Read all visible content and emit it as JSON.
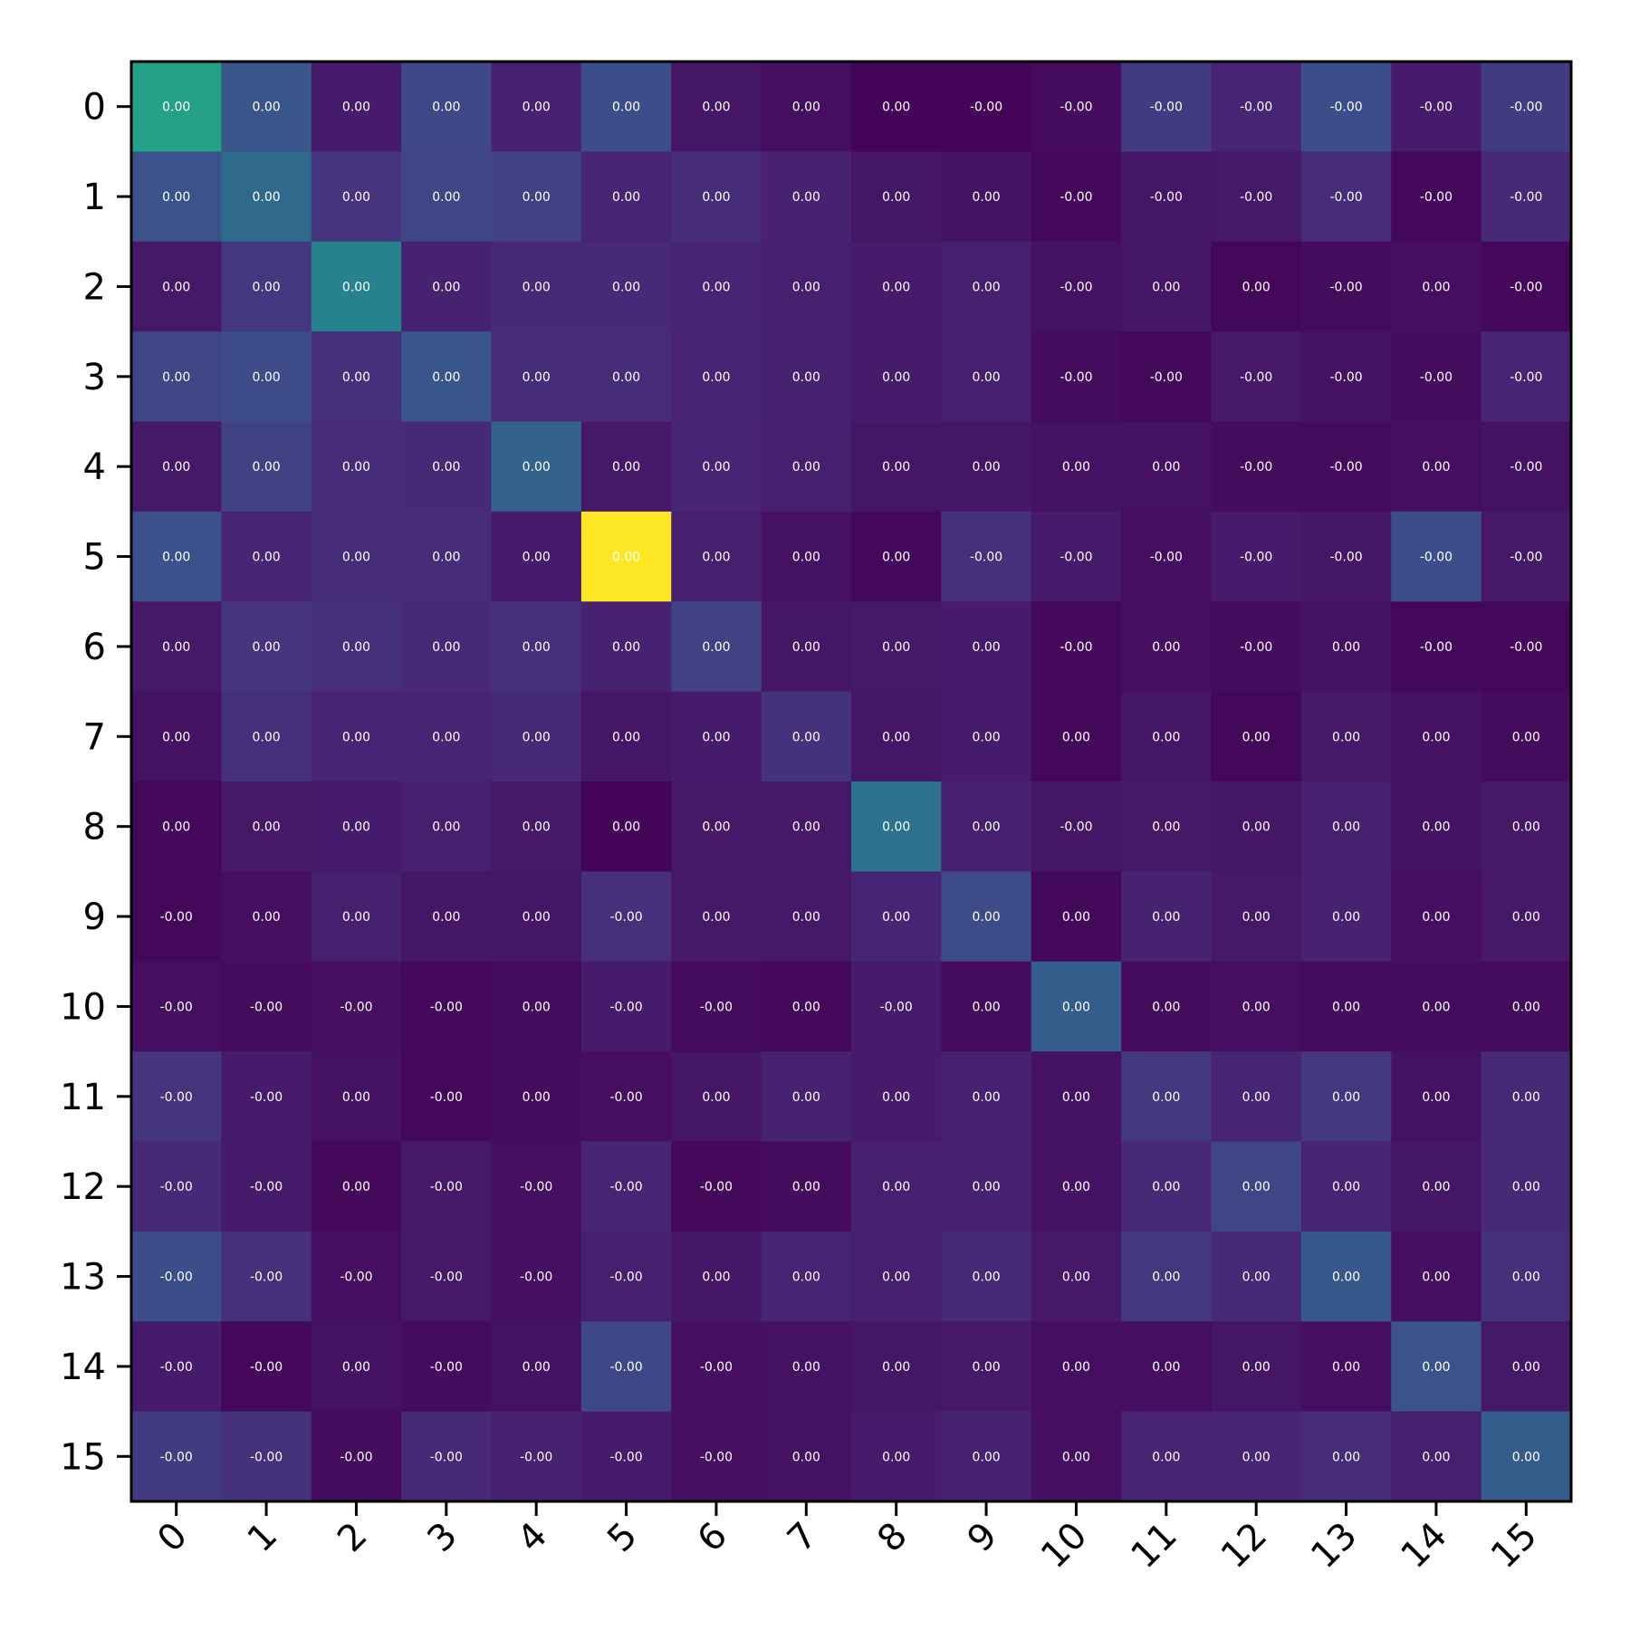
{
  "chart_data": {
    "type": "heatmap",
    "title": "",
    "xlabel": "",
    "ylabel": "",
    "x_categories": [
      "0",
      "1",
      "2",
      "3",
      "4",
      "5",
      "6",
      "7",
      "8",
      "9",
      "10",
      "11",
      "12",
      "13",
      "14",
      "15"
    ],
    "y_categories": [
      "0",
      "1",
      "2",
      "3",
      "4",
      "5",
      "6",
      "7",
      "8",
      "9",
      "10",
      "11",
      "12",
      "13",
      "14",
      "15"
    ],
    "colormap": "viridis",
    "grid": false,
    "legend": "none",
    "value_range": [
      0,
      1
    ],
    "intensity": [
      [
        0.57,
        0.27,
        0.08,
        0.22,
        0.1,
        0.24,
        0.06,
        0.04,
        0.01,
        0.01,
        0.03,
        0.18,
        0.11,
        0.24,
        0.08,
        0.18
      ],
      [
        0.26,
        0.35,
        0.16,
        0.21,
        0.2,
        0.11,
        0.13,
        0.1,
        0.06,
        0.05,
        0.02,
        0.06,
        0.07,
        0.13,
        0.02,
        0.12
      ],
      [
        0.07,
        0.17,
        0.45,
        0.1,
        0.12,
        0.12,
        0.11,
        0.09,
        0.08,
        0.09,
        0.05,
        0.06,
        0.02,
        0.03,
        0.04,
        0.02
      ],
      [
        0.21,
        0.23,
        0.14,
        0.27,
        0.13,
        0.13,
        0.11,
        0.1,
        0.08,
        0.09,
        0.03,
        0.02,
        0.07,
        0.05,
        0.03,
        0.11
      ],
      [
        0.07,
        0.2,
        0.13,
        0.12,
        0.32,
        0.07,
        0.11,
        0.09,
        0.06,
        0.06,
        0.05,
        0.05,
        0.03,
        0.03,
        0.04,
        0.05
      ],
      [
        0.25,
        0.11,
        0.13,
        0.13,
        0.08,
        1.0,
        0.09,
        0.05,
        0.02,
        0.14,
        0.08,
        0.04,
        0.08,
        0.06,
        0.24,
        0.07
      ],
      [
        0.07,
        0.16,
        0.14,
        0.12,
        0.14,
        0.1,
        0.2,
        0.06,
        0.07,
        0.08,
        0.02,
        0.04,
        0.03,
        0.05,
        0.02,
        0.02
      ],
      [
        0.05,
        0.14,
        0.11,
        0.11,
        0.12,
        0.06,
        0.08,
        0.15,
        0.06,
        0.08,
        0.02,
        0.06,
        0.02,
        0.07,
        0.05,
        0.03
      ],
      [
        0.02,
        0.07,
        0.08,
        0.09,
        0.07,
        0.01,
        0.07,
        0.07,
        0.38,
        0.09,
        0.06,
        0.07,
        0.06,
        0.09,
        0.05,
        0.07
      ],
      [
        0.02,
        0.04,
        0.09,
        0.06,
        0.06,
        0.14,
        0.07,
        0.07,
        0.11,
        0.23,
        0.02,
        0.1,
        0.07,
        0.1,
        0.04,
        0.07
      ],
      [
        0.04,
        0.03,
        0.04,
        0.02,
        0.03,
        0.08,
        0.03,
        0.02,
        0.08,
        0.03,
        0.3,
        0.03,
        0.04,
        0.03,
        0.03,
        0.03
      ],
      [
        0.16,
        0.08,
        0.05,
        0.02,
        0.03,
        0.04,
        0.06,
        0.1,
        0.08,
        0.1,
        0.05,
        0.17,
        0.11,
        0.17,
        0.05,
        0.12
      ],
      [
        0.12,
        0.08,
        0.02,
        0.07,
        0.04,
        0.11,
        0.02,
        0.03,
        0.09,
        0.1,
        0.05,
        0.12,
        0.21,
        0.11,
        0.06,
        0.12
      ],
      [
        0.24,
        0.14,
        0.04,
        0.07,
        0.04,
        0.09,
        0.06,
        0.11,
        0.09,
        0.12,
        0.07,
        0.17,
        0.12,
        0.28,
        0.04,
        0.14
      ],
      [
        0.08,
        0.02,
        0.05,
        0.03,
        0.05,
        0.22,
        0.04,
        0.05,
        0.06,
        0.07,
        0.04,
        0.04,
        0.06,
        0.04,
        0.26,
        0.07
      ],
      [
        0.18,
        0.15,
        0.03,
        0.12,
        0.1,
        0.08,
        0.04,
        0.05,
        0.08,
        0.1,
        0.04,
        0.11,
        0.11,
        0.13,
        0.09,
        0.3
      ]
    ],
    "labels": [
      [
        "0.00",
        "0.00",
        "0.00",
        "0.00",
        "0.00",
        "0.00",
        "0.00",
        "0.00",
        "0.00",
        "-0.00",
        "-0.00",
        "-0.00",
        "-0.00",
        "-0.00",
        "-0.00",
        "-0.00"
      ],
      [
        "0.00",
        "0.00",
        "0.00",
        "0.00",
        "0.00",
        "0.00",
        "0.00",
        "0.00",
        "0.00",
        "0.00",
        "-0.00",
        "-0.00",
        "-0.00",
        "-0.00",
        "-0.00",
        "-0.00"
      ],
      [
        "0.00",
        "0.00",
        "0.00",
        "0.00",
        "0.00",
        "0.00",
        "0.00",
        "0.00",
        "0.00",
        "0.00",
        "-0.00",
        "0.00",
        "0.00",
        "-0.00",
        "0.00",
        "-0.00"
      ],
      [
        "0.00",
        "0.00",
        "0.00",
        "0.00",
        "0.00",
        "0.00",
        "0.00",
        "0.00",
        "0.00",
        "0.00",
        "-0.00",
        "-0.00",
        "-0.00",
        "-0.00",
        "-0.00",
        "-0.00"
      ],
      [
        "0.00",
        "0.00",
        "0.00",
        "0.00",
        "0.00",
        "0.00",
        "0.00",
        "0.00",
        "0.00",
        "0.00",
        "0.00",
        "0.00",
        "-0.00",
        "-0.00",
        "0.00",
        "-0.00"
      ],
      [
        "0.00",
        "0.00",
        "0.00",
        "0.00",
        "0.00",
        "0.00",
        "0.00",
        "0.00",
        "0.00",
        "-0.00",
        "-0.00",
        "-0.00",
        "-0.00",
        "-0.00",
        "-0.00",
        "-0.00"
      ],
      [
        "0.00",
        "0.00",
        "0.00",
        "0.00",
        "0.00",
        "0.00",
        "0.00",
        "0.00",
        "0.00",
        "0.00",
        "-0.00",
        "0.00",
        "-0.00",
        "0.00",
        "-0.00",
        "-0.00"
      ],
      [
        "0.00",
        "0.00",
        "0.00",
        "0.00",
        "0.00",
        "0.00",
        "0.00",
        "0.00",
        "0.00",
        "0.00",
        "0.00",
        "0.00",
        "0.00",
        "0.00",
        "0.00",
        "0.00"
      ],
      [
        "0.00",
        "0.00",
        "0.00",
        "0.00",
        "0.00",
        "0.00",
        "0.00",
        "0.00",
        "0.00",
        "0.00",
        "-0.00",
        "0.00",
        "0.00",
        "0.00",
        "0.00",
        "0.00"
      ],
      [
        "-0.00",
        "0.00",
        "0.00",
        "0.00",
        "0.00",
        "-0.00",
        "0.00",
        "0.00",
        "0.00",
        "0.00",
        "0.00",
        "0.00",
        "0.00",
        "0.00",
        "0.00",
        "0.00"
      ],
      [
        "-0.00",
        "-0.00",
        "-0.00",
        "-0.00",
        "0.00",
        "-0.00",
        "-0.00",
        "0.00",
        "-0.00",
        "0.00",
        "0.00",
        "0.00",
        "0.00",
        "0.00",
        "0.00",
        "0.00"
      ],
      [
        "-0.00",
        "-0.00",
        "0.00",
        "-0.00",
        "0.00",
        "-0.00",
        "0.00",
        "0.00",
        "0.00",
        "0.00",
        "0.00",
        "0.00",
        "0.00",
        "0.00",
        "0.00",
        "0.00"
      ],
      [
        "-0.00",
        "-0.00",
        "0.00",
        "-0.00",
        "-0.00",
        "-0.00",
        "-0.00",
        "0.00",
        "0.00",
        "0.00",
        "0.00",
        "0.00",
        "0.00",
        "0.00",
        "0.00",
        "0.00"
      ],
      [
        "-0.00",
        "-0.00",
        "-0.00",
        "-0.00",
        "-0.00",
        "-0.00",
        "0.00",
        "0.00",
        "0.00",
        "0.00",
        "0.00",
        "0.00",
        "0.00",
        "0.00",
        "0.00",
        "0.00"
      ],
      [
        "-0.00",
        "-0.00",
        "0.00",
        "-0.00",
        "0.00",
        "-0.00",
        "-0.00",
        "0.00",
        "0.00",
        "0.00",
        "0.00",
        "0.00",
        "0.00",
        "0.00",
        "0.00",
        "0.00"
      ],
      [
        "-0.00",
        "-0.00",
        "-0.00",
        "-0.00",
        "-0.00",
        "-0.00",
        "-0.00",
        "0.00",
        "0.00",
        "0.00",
        "0.00",
        "0.00",
        "0.00",
        "0.00",
        "0.00",
        "0.00"
      ]
    ]
  }
}
